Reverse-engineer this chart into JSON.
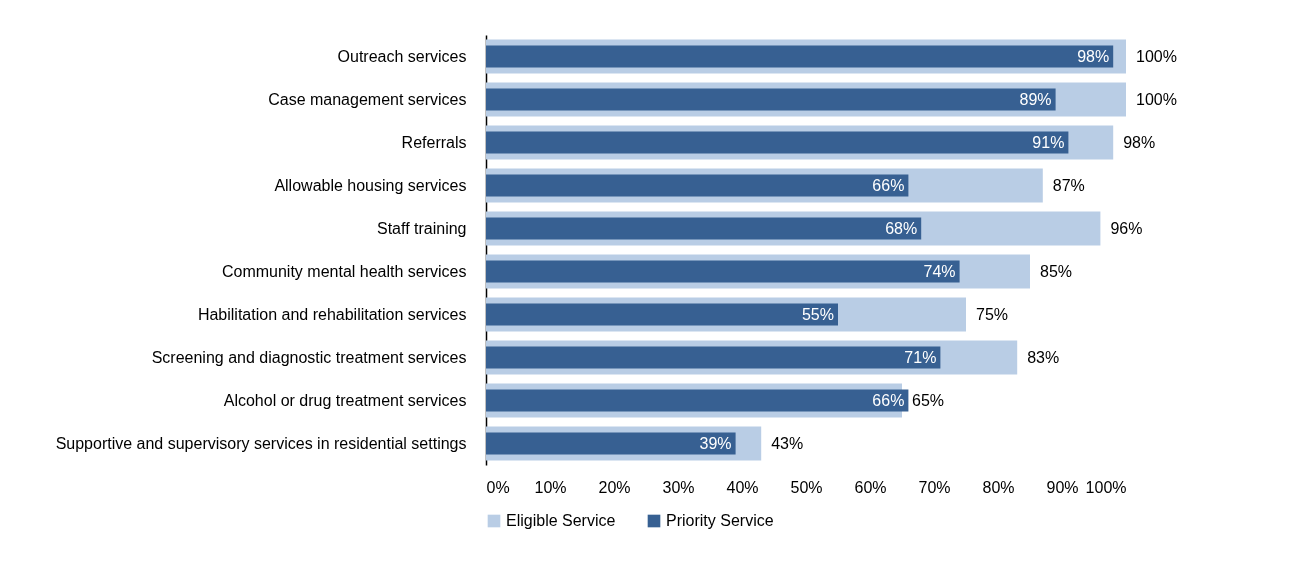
{
  "chart_data": {
    "type": "bar",
    "orientation": "horizontal",
    "categories": [
      "Outreach services",
      "Case management services",
      "Referrals",
      "Allowable housing services",
      "Staff training",
      "Community mental health services",
      "Habilitation and rehabilitation services",
      "Screening and diagnostic treatment services",
      "Alcohol or drug treatment services",
      "Supportive and supervisory services in residential settings"
    ],
    "series": [
      {
        "name": "Eligible Service",
        "color": "#b9cde5",
        "values": [
          100,
          100,
          98,
          87,
          96,
          85,
          75,
          83,
          65,
          43
        ],
        "value_labels": [
          "100%",
          "100%",
          "98%",
          "87%",
          "96%",
          "85%",
          "75%",
          "83%",
          "65%",
          "43%"
        ]
      },
      {
        "name": "Priority Service",
        "color": "#376092",
        "values": [
          98,
          89,
          91,
          66,
          68,
          74,
          55,
          71,
          66,
          39
        ],
        "value_labels": [
          "98%",
          "89%",
          "91%",
          "66%",
          "68%",
          "74%",
          "55%",
          "71%",
          "66%",
          "39%"
        ]
      }
    ],
    "xlim": [
      0,
      100
    ],
    "xticks": [
      {
        "value": 0,
        "label": "0%"
      },
      {
        "value": 10,
        "label": "10%"
      },
      {
        "value": 20,
        "label": "20%"
      },
      {
        "value": 30,
        "label": "30%"
      },
      {
        "value": 40,
        "label": "40%"
      },
      {
        "value": 50,
        "label": "50%"
      },
      {
        "value": 60,
        "label": "60%"
      },
      {
        "value": 70,
        "label": "70%"
      },
      {
        "value": 80,
        "label": "80%"
      },
      {
        "value": 90,
        "label": "90%"
      },
      {
        "value": 100,
        "label": "100%"
      }
    ],
    "legend": "bottom"
  }
}
